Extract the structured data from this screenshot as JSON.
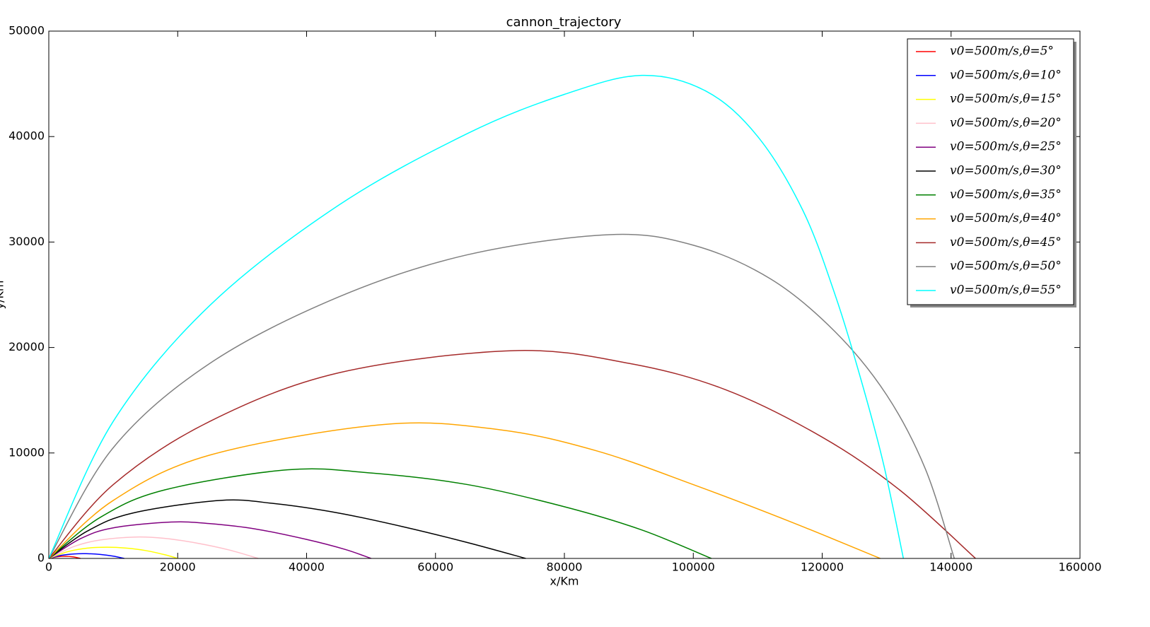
{
  "chart_data": {
    "type": "line",
    "title": "cannon_trajectory",
    "x_label": "x/Km",
    "y_label": "y/Km",
    "xlim": [
      0,
      160000
    ],
    "ylim": [
      0,
      50000
    ],
    "xticks": [
      0,
      20000,
      40000,
      60000,
      80000,
      100000,
      120000,
      140000,
      160000
    ],
    "yticks": [
      0,
      10000,
      20000,
      30000,
      40000,
      50000
    ],
    "legend": "upper right",
    "series": [
      {
        "name": "v0=500m/s,θ=5°",
        "color": "#ff0000",
        "x": [
          0,
          1250,
          2500,
          3750,
          4900
        ],
        "values": [
          0,
          150,
          200,
          150,
          0
        ]
      },
      {
        "name": "v0=500m/s,θ=10°",
        "color": "#0000ff",
        "x": [
          0,
          2000,
          4000,
          5800,
          8000,
          10000,
          11700
        ],
        "values": [
          0,
          300,
          430,
          450,
          380,
          220,
          0
        ]
      },
      {
        "name": "v0=500m/s,θ=15°",
        "color": "#ffff00",
        "x": [
          0,
          3000,
          6000,
          9000,
          12000,
          15000,
          18000,
          20000
        ],
        "values": [
          0,
          650,
          980,
          1060,
          980,
          750,
          350,
          0
        ]
      },
      {
        "name": "v0=500m/s,θ=20°",
        "color": "#ffc0cb",
        "x": [
          0,
          4000,
          8000,
          13500,
          18000,
          23000,
          28000,
          32500
        ],
        "values": [
          0,
          1150,
          1750,
          2030,
          1900,
          1450,
          800,
          0
        ]
      },
      {
        "name": "v0=500m/s,θ=25°",
        "color": "#800080",
        "x": [
          0,
          5000,
          10000,
          19000,
          25000,
          32000,
          40000,
          46000,
          50000
        ],
        "values": [
          0,
          1900,
          2900,
          3450,
          3300,
          2800,
          1800,
          850,
          0
        ]
      },
      {
        "name": "v0=500m/s,θ=30°",
        "color": "#000000",
        "x": [
          0,
          6000,
          13000,
          26500,
          35000,
          45000,
          55000,
          65000,
          74000
        ],
        "values": [
          0,
          2600,
          4300,
          5500,
          5200,
          4300,
          3000,
          1500,
          0
        ]
      },
      {
        "name": "v0=500m/s,θ=35°",
        "color": "#008000",
        "x": [
          0,
          8000,
          18000,
          37000,
          50000,
          65000,
          80000,
          92000,
          102800
        ],
        "values": [
          0,
          3900,
          6500,
          8400,
          8100,
          7000,
          4900,
          2700,
          0
        ]
      },
      {
        "name": "v0=500m/s,θ=40°",
        "color": "#ffa500",
        "x": [
          0,
          10000,
          25000,
          52000,
          70000,
          85000,
          100000,
          115000,
          129000
        ],
        "values": [
          0,
          5500,
          9800,
          12700,
          12200,
          10200,
          7000,
          3500,
          0
        ]
      },
      {
        "name": "v0=500m/s,θ=45°",
        "color": "#a52a2a",
        "x": [
          0,
          10000,
          25000,
          45000,
          72000,
          90000,
          105000,
          120000,
          132000,
          143800
        ],
        "values": [
          0,
          7000,
          13000,
          17600,
          19700,
          18500,
          16000,
          11500,
          6500,
          0
        ]
      },
      {
        "name": "v0=500m/s,θ=50°",
        "color": "#808080",
        "x": [
          0,
          10000,
          25000,
          45000,
          65000,
          87000,
          100000,
          112000,
          122000,
          130000,
          136000,
          140500
        ],
        "values": [
          0,
          10500,
          18500,
          24800,
          28800,
          30700,
          29700,
          26500,
          21500,
          15500,
          8500,
          0
        ]
      },
      {
        "name": "v0=500m/s,θ=55°",
        "color": "#00ffff",
        "x": [
          0,
          10000,
          25000,
          45000,
          65000,
          80000,
          92000,
          102000,
          110000,
          117000,
          122000,
          126000,
          129500,
          132600
        ],
        "values": [
          0,
          13000,
          24000,
          33500,
          40300,
          44000,
          45800,
          44300,
          40000,
          33000,
          25000,
          17000,
          9000,
          0
        ]
      }
    ]
  }
}
